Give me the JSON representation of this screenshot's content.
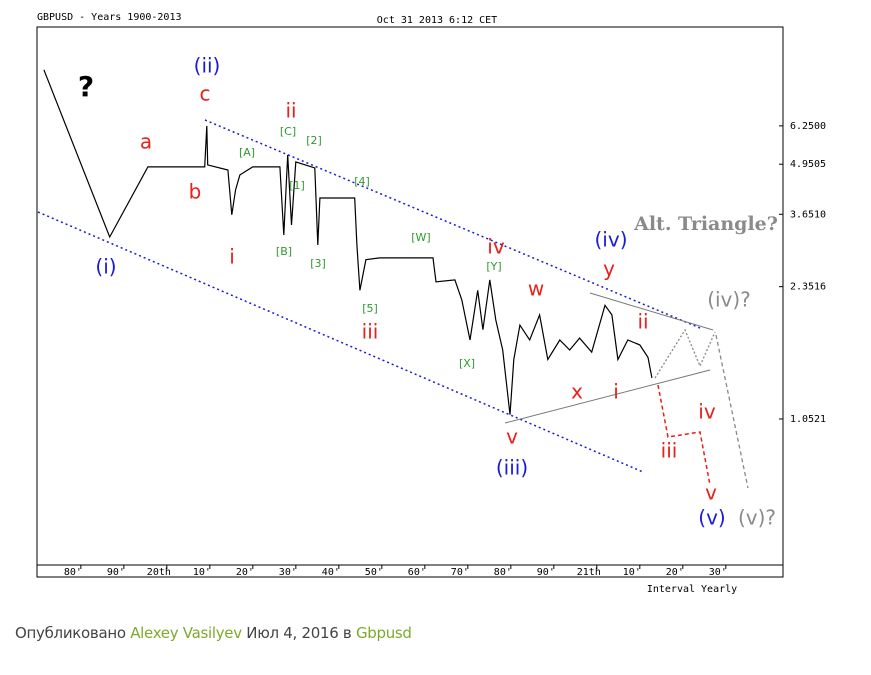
{
  "chart_data": {
    "type": "line",
    "title": "GBPUSD - Years 1900-2013",
    "subtitle": "Oct 31 2013 6:12 CET",
    "x_label": "Interval Yearly",
    "log_scale": true,
    "x": [
      1871.4,
      1886.7,
      1895.6,
      1908.8,
      1909.3,
      1909.5,
      1914.2,
      1915.1,
      1916.0,
      1917.0,
      1920.0,
      1926.3,
      1927.2,
      1928.1,
      1929.0,
      1930.0,
      1934.4,
      1935.1,
      1935.6,
      1943.7,
      1944.2,
      1944.9,
      1946.3,
      1949.5,
      1961.9,
      1962.6,
      1967.0,
      1968.6,
      1970.5,
      1972.3,
      1973.5,
      1975.1,
      1976.5,
      1978.1,
      1979.8,
      1980.7,
      1982.1,
      1984.4,
      1986.7,
      1988.6,
      1991.4,
      1993.7,
      1996.0,
      1998.8,
      2001.9,
      2003.5,
      2004.9,
      2007.2,
      2010.0,
      2011.9,
      2012.8
    ],
    "values": [
      8.79,
      3.18,
      4.87,
      4.87,
      6.25,
      4.93,
      4.78,
      3.64,
      4.24,
      4.64,
      4.87,
      4.87,
      3.22,
      5.24,
      3.42,
      5.02,
      4.84,
      3.03,
      4.03,
      4.03,
      3.03,
      2.3,
      2.77,
      2.8,
      2.8,
      2.42,
      2.45,
      2.17,
      1.7,
      2.3,
      1.81,
      2.45,
      1.92,
      1.6,
      1.08,
      1.51,
      1.86,
      1.7,
      1.98,
      1.51,
      1.7,
      1.6,
      1.72,
      1.58,
      2.1,
      1.98,
      1.51,
      1.7,
      1.65,
      1.53,
      1.35
    ],
    "color": "#000000",
    "xlim": [
      1869.8,
      2043.3
    ],
    "xticks": [
      {
        "value": 1880,
        "label": "80'"
      },
      {
        "value": 1890,
        "label": "90'"
      },
      {
        "value": 1900,
        "label": "20th"
      },
      {
        "value": 1910,
        "label": "10'"
      },
      {
        "value": 1920,
        "label": "20'"
      },
      {
        "value": 1930,
        "label": "30'"
      },
      {
        "value": 1940,
        "label": "40'"
      },
      {
        "value": 1950,
        "label": "50'"
      },
      {
        "value": 1960,
        "label": "60'"
      },
      {
        "value": 1970,
        "label": "70'"
      },
      {
        "value": 1980,
        "label": "80'"
      },
      {
        "value": 1990,
        "label": "90'"
      },
      {
        "value": 2000,
        "label": "21th"
      },
      {
        "value": 2010,
        "label": "10'"
      },
      {
        "value": 2020,
        "label": "20'"
      },
      {
        "value": 2030,
        "label": "30'"
      }
    ],
    "ylim": [
      0.433,
      11.4
    ],
    "yticks": [
      {
        "value": 1.0521,
        "label": "1.0521"
      },
      {
        "value": 2.3516,
        "label": "2.3516"
      },
      {
        "value": 3.651,
        "label": "3.6510"
      },
      {
        "value": 4.9505,
        "label": "4.9505"
      },
      {
        "value": 6.25,
        "label": "6.2500"
      }
    ],
    "annotations": [
      {
        "text": "?",
        "color": "#000000"
      },
      {
        "text": "(ii)",
        "color": "#1a1adb"
      },
      {
        "text": "c",
        "color": "#e8201a"
      },
      {
        "text": "a",
        "color": "#e8201a"
      },
      {
        "text": "b",
        "color": "#e8201a"
      },
      {
        "text": "(i)",
        "color": "#1a1adb"
      },
      {
        "text": "i",
        "color": "#e8201a"
      },
      {
        "text": "ii",
        "color": "#e8201a"
      },
      {
        "text": "[C]",
        "color": "#2f9a2f"
      },
      {
        "text": "[A]",
        "color": "#2f9a2f"
      },
      {
        "text": "[2]",
        "color": "#2f9a2f"
      },
      {
        "text": "[1]",
        "color": "#2f9a2f"
      },
      {
        "text": "[B]",
        "color": "#2f9a2f"
      },
      {
        "text": "[3]",
        "color": "#2f9a2f"
      },
      {
        "text": "[4]",
        "color": "#2f9a2f"
      },
      {
        "text": "[5]",
        "color": "#2f9a2f"
      },
      {
        "text": "iii",
        "color": "#e8201a"
      },
      {
        "text": "[W]",
        "color": "#2f9a2f"
      },
      {
        "text": "iv",
        "color": "#e8201a"
      },
      {
        "text": "[Y]",
        "color": "#2f9a2f"
      },
      {
        "text": "w",
        "color": "#e8201a"
      },
      {
        "text": "[X]",
        "color": "#2f9a2f"
      },
      {
        "text": "(iv)",
        "color": "#1a1adb"
      },
      {
        "text": "y",
        "color": "#e8201a"
      },
      {
        "text": "Alt. Triangle?",
        "color": "#8a8a8a"
      },
      {
        "text": "(iv)?",
        "color": "#8a8a8a"
      },
      {
        "text": "ii",
        "color": "#e8201a"
      },
      {
        "text": "x",
        "color": "#e8201a"
      },
      {
        "text": "i",
        "color": "#e8201a"
      },
      {
        "text": "v",
        "color": "#e8201a"
      },
      {
        "text": "(iii)",
        "color": "#1a1adb"
      },
      {
        "text": "iv",
        "color": "#e8201a"
      },
      {
        "text": "iii",
        "color": "#e8201a"
      },
      {
        "text": "v",
        "color": "#e8201a"
      },
      {
        "text": "(v)",
        "color": "#1a1adb"
      },
      {
        "text": "(v)?",
        "color": "#8a8a8a"
      }
    ]
  },
  "footer": {
    "prefix": "Опубликовано",
    "author": "Alexey Vasilyev",
    "date": "Июл 4, 2016",
    "in": "в",
    "tag": "Gbpusd"
  }
}
